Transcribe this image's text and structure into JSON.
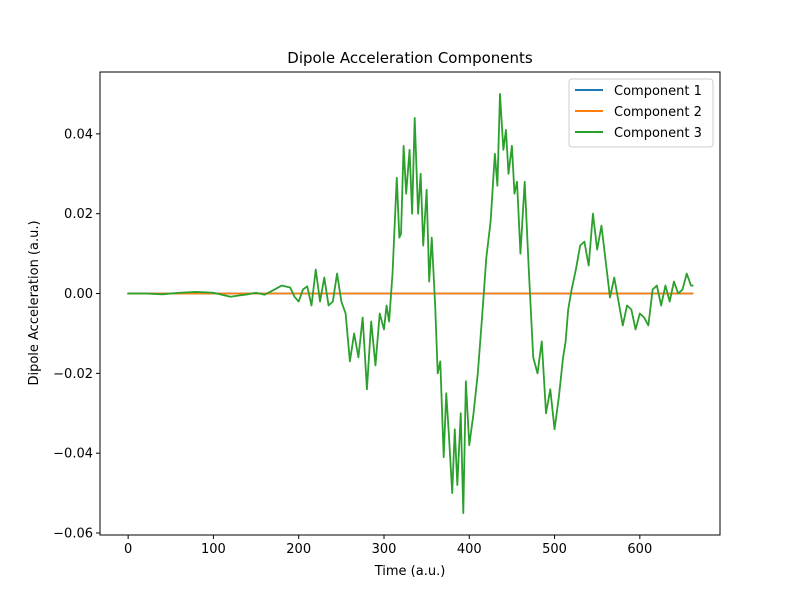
{
  "chart_data": {
    "type": "line",
    "title": "Dipole Acceleration Components",
    "xlabel": "Time (a.u.)",
    "ylabel": "Dipole Acceleration (a.u.)",
    "xlim": [
      -33,
      694
    ],
    "ylim": [
      -0.0605,
      0.0555
    ],
    "xticks": [
      0,
      100,
      200,
      300,
      400,
      500,
      600
    ],
    "xtick_labels": [
      "0",
      "100",
      "200",
      "300",
      "400",
      "500",
      "600"
    ],
    "yticks": [
      -0.06,
      -0.04,
      -0.02,
      0.0,
      0.02,
      0.04
    ],
    "ytick_labels": [
      "−0.06",
      "−0.04",
      "−0.02",
      "0.00",
      "0.02",
      "0.04"
    ],
    "grid": false,
    "legend_position": "top-right",
    "series": [
      {
        "name": "Component 1",
        "color": "#1f77b4",
        "x": [
          0,
          662
        ],
        "y": [
          0.0,
          0.0
        ]
      },
      {
        "name": "Component 2",
        "color": "#ff7f0e",
        "x": [
          0,
          662
        ],
        "y": [
          0.0,
          0.0
        ]
      },
      {
        "name": "Component 3",
        "color": "#2ca02c",
        "x": [
          0,
          20,
          40,
          60,
          80,
          100,
          120,
          130,
          140,
          150,
          160,
          170,
          180,
          190,
          195,
          200,
          205,
          210,
          215,
          220,
          225,
          230,
          235,
          240,
          245,
          250,
          255,
          260,
          265,
          270,
          275,
          280,
          285,
          290,
          295,
          300,
          303,
          306,
          310,
          315,
          318,
          320,
          323,
          326,
          330,
          333,
          336,
          340,
          343,
          346,
          350,
          353,
          356,
          360,
          363,
          366,
          370,
          373,
          376,
          380,
          383,
          386,
          390,
          393,
          396,
          400,
          405,
          410,
          415,
          420,
          425,
          430,
          433,
          436,
          440,
          443,
          446,
          450,
          453,
          456,
          460,
          465,
          470,
          475,
          480,
          485,
          490,
          495,
          500,
          505,
          510,
          513,
          516,
          520,
          525,
          530,
          535,
          540,
          545,
          550,
          555,
          560,
          565,
          570,
          575,
          580,
          585,
          590,
          595,
          600,
          605,
          610,
          615,
          620,
          625,
          630,
          635,
          640,
          645,
          650,
          655,
          660,
          662
        ],
        "y": [
          0.0,
          0.0,
          -0.0002,
          0.0002,
          0.0004,
          0.0002,
          -0.0008,
          -0.0005,
          -0.0002,
          0.0002,
          -0.0003,
          0.0008,
          0.002,
          0.0015,
          -0.0008,
          -0.002,
          0.001,
          0.0018,
          -0.003,
          0.006,
          -0.002,
          0.004,
          -0.003,
          -0.002,
          0.005,
          -0.002,
          -0.005,
          -0.017,
          -0.01,
          -0.016,
          -0.006,
          -0.024,
          -0.007,
          -0.018,
          -0.005,
          -0.009,
          -0.003,
          -0.007,
          0.005,
          0.029,
          0.014,
          0.015,
          0.037,
          0.025,
          0.036,
          0.02,
          0.044,
          0.02,
          0.03,
          0.012,
          0.026,
          0.003,
          0.014,
          -0.003,
          -0.02,
          -0.017,
          -0.041,
          -0.025,
          -0.035,
          -0.05,
          -0.034,
          -0.048,
          -0.03,
          -0.055,
          -0.022,
          -0.038,
          -0.03,
          -0.02,
          -0.006,
          0.009,
          0.018,
          0.035,
          0.027,
          0.05,
          0.036,
          0.041,
          0.03,
          0.037,
          0.025,
          0.028,
          0.01,
          0.028,
          0.005,
          -0.016,
          -0.02,
          -0.012,
          -0.03,
          -0.024,
          -0.034,
          -0.026,
          -0.016,
          -0.012,
          -0.004,
          0.001,
          0.006,
          0.012,
          0.013,
          0.007,
          0.02,
          0.011,
          0.017,
          0.008,
          -0.001,
          0.004,
          -0.002,
          -0.008,
          -0.003,
          -0.004,
          -0.009,
          -0.005,
          -0.006,
          -0.008,
          0.001,
          0.002,
          -0.003,
          0.002,
          -0.002,
          0.003,
          0.0,
          0.001,
          0.005,
          0.002,
          0.002
        ]
      }
    ]
  }
}
